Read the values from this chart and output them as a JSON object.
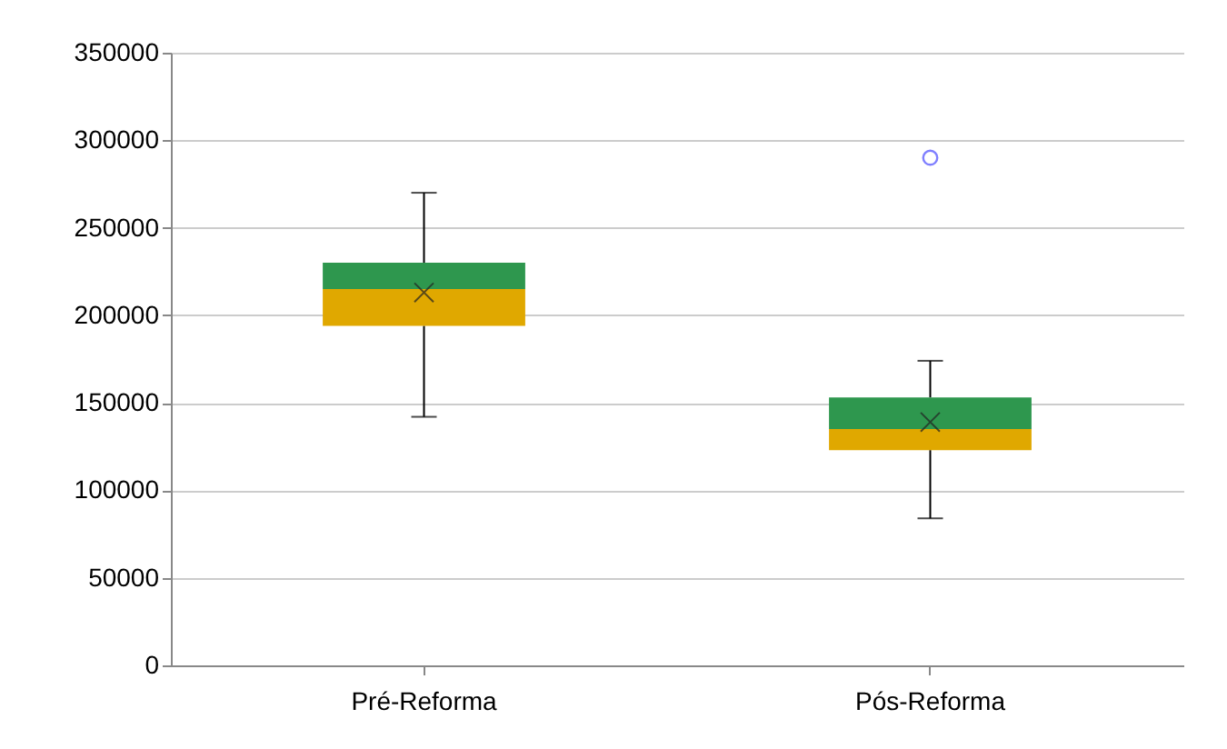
{
  "chart_data": {
    "type": "box",
    "categories": [
      "Pré-Reforma",
      "Pós-Reforma"
    ],
    "boxes": [
      {
        "low": 142000,
        "q1": 194000,
        "median": 215000,
        "q3": 230000,
        "high": 270000,
        "mean": 213000
      },
      {
        "low": 84000,
        "q1": 123000,
        "median": 135000,
        "q3": 153000,
        "high": 174000,
        "mean": 139000,
        "outliers": [
          290000
        ]
      }
    ],
    "ylim": [
      0,
      350000
    ],
    "yticks": [
      0,
      50000,
      100000,
      150000,
      200000,
      250000,
      300000,
      350000
    ],
    "grid": "y"
  }
}
